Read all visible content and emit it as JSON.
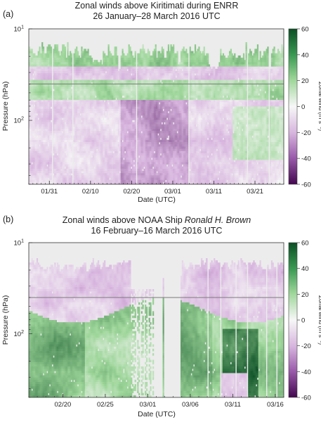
{
  "chart_data": [
    {
      "type": "heatmap",
      "panel_label": "(a)",
      "title_line1": "Zonal winds above Kiritimati during ENRR",
      "title_line2": "26 January–28 March 2016 UTC",
      "xlabel": "Date (UTC)",
      "ylabel": "Pressure (hPa)",
      "yscale": "log",
      "ylim": [
        500,
        10
      ],
      "y_ticks": [
        {
          "main": "10",
          "sup": "1"
        },
        {
          "main": "10",
          "sup": "2"
        }
      ],
      "x_range_days": [
        0,
        62
      ],
      "x_ticks": [
        {
          "label": "01/31",
          "day": 5
        },
        {
          "label": "02/10",
          "day": 15
        },
        {
          "label": "02/20",
          "day": 25
        },
        {
          "label": "03/01",
          "day": 35
        },
        {
          "label": "03/11",
          "day": 45
        },
        {
          "label": "03/21",
          "day": 55
        }
      ],
      "reference_line_hpa": 40,
      "colorbar": {
        "label": "Zonal wind (m s⁻¹)",
        "range": [
          -60,
          60
        ],
        "ticks": [
          "60",
          "40",
          "20",
          "0",
          "-20",
          "-40",
          "-60"
        ]
      },
      "colors": {
        "positive": "#1b6e35",
        "negative": "#4e0f5c",
        "missing": "#ececec"
      }
    },
    {
      "type": "heatmap",
      "panel_label": "(b)",
      "title_line1": "Zonal winds above NOAA Ship",
      "title_italic": "Ronald H. Brown",
      "title_line2": "16 February–16 March 2016 UTC",
      "xlabel": "Date (UTC)",
      "ylabel": "Pressure (hPa)",
      "yscale": "log",
      "ylim": [
        500,
        10
      ],
      "y_ticks": [
        {
          "main": "10",
          "sup": "1"
        },
        {
          "main": "10",
          "sup": "2"
        }
      ],
      "x_range_days": [
        0,
        30
      ],
      "x_ticks": [
        {
          "label": "02/20",
          "day": 4
        },
        {
          "label": "02/25",
          "day": 9
        },
        {
          "label": "03/01",
          "day": 14
        },
        {
          "label": "03/06",
          "day": 19
        },
        {
          "label": "03/11",
          "day": 24
        },
        {
          "label": "03/16",
          "day": 29
        }
      ],
      "reference_line_hpa": 40,
      "colorbar": {
        "label": "Zonal wind (m s⁻¹)",
        "range": [
          -60,
          60
        ],
        "ticks": [
          "60",
          "40",
          "20",
          "0",
          "-20",
          "-40",
          "-60"
        ]
      },
      "colors": {
        "positive": "#1b6e35",
        "negative": "#4e0f5c",
        "missing": "#ececec"
      }
    }
  ]
}
